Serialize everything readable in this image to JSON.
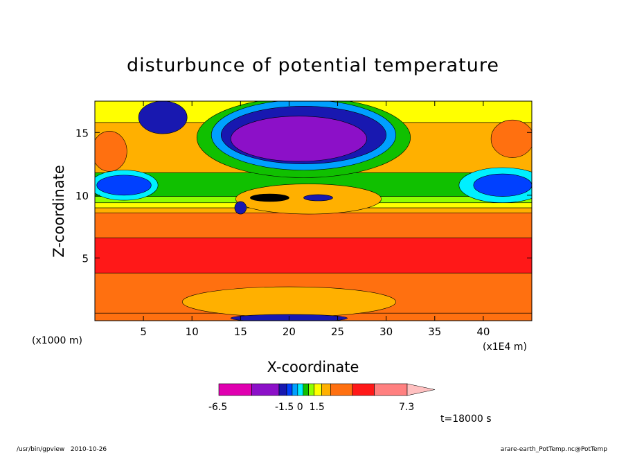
{
  "chart_data": {
    "type": "heatmap",
    "title": "disturbunce of potential temperature",
    "xlabel": "X-coordinate",
    "ylabel": "Z-coordinate",
    "x_unit_label": "(x1E4 m)",
    "y_unit_label": "(x1000 m)",
    "xlim": [
      0,
      45
    ],
    "ylim": [
      0,
      17.5
    ],
    "x_ticks": [
      5,
      10,
      15,
      20,
      25,
      30,
      35,
      40
    ],
    "y_ticks": [
      5,
      10,
      15
    ],
    "x_tick_labels": [
      "5",
      "10",
      "15",
      "20",
      "25",
      "30",
      "35",
      "40"
    ],
    "y_tick_labels": [
      "5",
      "10",
      "15"
    ],
    "colorbar": {
      "min_label": "-6.5",
      "mid_label": "-1.5 0  1.5",
      "max_label": "7.3",
      "colors": [
        "#e000b0",
        "#8c10c8",
        "#1818b0",
        "#0040ff",
        "#00a0ff",
        "#00f0ff",
        "#10c000",
        "#90ff00",
        "#ffff00",
        "#ffb000",
        "#ff7010",
        "#ff1818",
        "#ff8080",
        "#ffc0c0"
      ]
    },
    "time_label": "t=18000 s",
    "bands": [
      {
        "z0": 0.0,
        "z1": 0.6,
        "color": "#ff7010"
      },
      {
        "z0": 0.6,
        "z1": 3.8,
        "color": "#ff7010"
      },
      {
        "z0": 3.8,
        "z1": 6.6,
        "color": "#ff1818"
      },
      {
        "z0": 6.6,
        "z1": 8.6,
        "color": "#ff7010"
      },
      {
        "z0": 8.6,
        "z1": 9.0,
        "color": "#ffb000"
      },
      {
        "z0": 9.0,
        "z1": 9.4,
        "color": "#ffff00"
      },
      {
        "z0": 9.4,
        "z1": 9.9,
        "color": "#90ff00"
      },
      {
        "z0": 9.9,
        "z1": 11.8,
        "color": "#10c000"
      },
      {
        "z0": 11.8,
        "z1": 15.8,
        "color": "#ffb000"
      },
      {
        "z0": 15.8,
        "z1": 17.5,
        "color": "#ffff00"
      }
    ],
    "blobs": [
      {
        "x": 3,
        "z": 10.8,
        "rx": 3.5,
        "rz": 1.2,
        "color": "#00f0ff"
      },
      {
        "x": 3,
        "z": 10.8,
        "rx": 2.8,
        "rz": 0.8,
        "color": "#0040ff"
      },
      {
        "x": 42,
        "z": 10.8,
        "rx": 4.5,
        "rz": 1.4,
        "color": "#00f0ff"
      },
      {
        "x": 42,
        "z": 10.8,
        "rx": 3.0,
        "rz": 0.9,
        "color": "#0040ff"
      },
      {
        "x": 1.5,
        "z": 13.5,
        "rx": 1.8,
        "rz": 1.6,
        "color": "#ff7010"
      },
      {
        "x": 43,
        "z": 14.5,
        "rx": 2.2,
        "rz": 1.5,
        "color": "#ff7010"
      },
      {
        "x": 21.5,
        "z": 14.6,
        "rx": 11,
        "rz": 3.2,
        "color": "#10c000"
      },
      {
        "x": 21.5,
        "z": 14.8,
        "rx": 9.5,
        "rz": 2.8,
        "color": "#00a0ff"
      },
      {
        "x": 21.5,
        "z": 14.8,
        "rx": 8.5,
        "rz": 2.3,
        "color": "#1818b0"
      },
      {
        "x": 21,
        "z": 14.5,
        "rx": 7.0,
        "rz": 1.8,
        "color": "#8c10c8"
      },
      {
        "x": 7,
        "z": 16.2,
        "rx": 2.5,
        "rz": 1.3,
        "color": "#1818b0"
      },
      {
        "x": 22,
        "z": 9.7,
        "rx": 7.5,
        "rz": 1.2,
        "color": "#ffb000"
      },
      {
        "x": 18,
        "z": 9.8,
        "rx": 2.0,
        "rz": 0.3,
        "color": "#000000"
      },
      {
        "x": 23,
        "z": 9.8,
        "rx": 1.5,
        "rz": 0.25,
        "color": "#1818b0"
      },
      {
        "x": 15,
        "z": 9.0,
        "rx": 0.6,
        "rz": 0.5,
        "color": "#1818b0"
      },
      {
        "x": 20,
        "z": 1.5,
        "rx": 11,
        "rz": 1.2,
        "color": "#ffb000"
      },
      {
        "x": 20,
        "z": 0.2,
        "rx": 6,
        "rz": 0.3,
        "color": "#1818b0"
      }
    ]
  },
  "footer": {
    "left": "/usr/bin/gpview   2010-10-26",
    "right": "arare-earth_PotTemp.nc@PotTemp"
  }
}
